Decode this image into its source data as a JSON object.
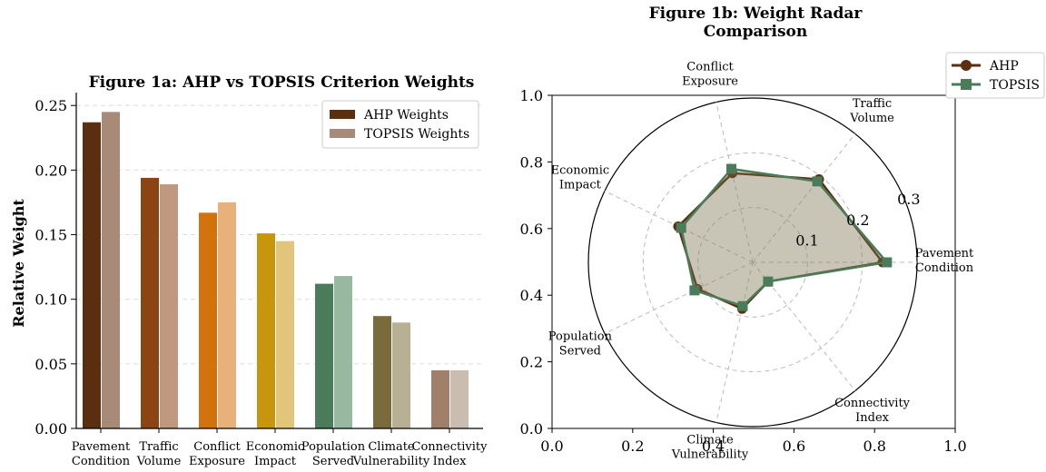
{
  "chart_data": [
    {
      "type": "bar",
      "title": "Figure 1a: AHP vs TOPSIS Criterion Weights",
      "ylabel": "Relative Weight",
      "xlabel": "",
      "ylim": [
        0,
        0.26
      ],
      "yticks": [
        "0.00",
        "0.05",
        "0.10",
        "0.15",
        "0.20",
        "0.25"
      ],
      "categories": [
        [
          "Pavement",
          "Condition"
        ],
        [
          "Traffic",
          "Volume"
        ],
        [
          "Conflict",
          "Exposure"
        ],
        [
          "Economic",
          "Impact"
        ],
        [
          "Population",
          "Served"
        ],
        [
          "Climate",
          "Vulnerability"
        ],
        [
          "Connectivity",
          "Index"
        ]
      ],
      "series": [
        {
          "name": "AHP Weights",
          "values": [
            0.237,
            0.194,
            0.167,
            0.151,
            0.112,
            0.087,
            0.045
          ]
        },
        {
          "name": "TOPSIS Weights",
          "values": [
            0.245,
            0.189,
            0.175,
            0.145,
            0.118,
            0.082,
            0.045
          ]
        }
      ],
      "bar_colors": {
        "ahp": [
          "#5c2e10",
          "#8b4513",
          "#d2720c",
          "#c8960c",
          "#4a7c59",
          "#7a6b3a",
          "#a08068"
        ],
        "topsis": [
          "#a88a78",
          "#c09880",
          "#e8b07a",
          "#e0c57a",
          "#98b8a0",
          "#b8b094",
          "#cbbcb0"
        ]
      },
      "legend_colors": [
        "#5c2e10",
        "#a88a78"
      ],
      "legend": "top-right",
      "grid": "y dashed"
    },
    {
      "type": "radar",
      "title": [
        "Figure 1b: Weight Radar",
        "Comparison"
      ],
      "axes": [
        [
          "Pavement",
          "Condition"
        ],
        [
          "Traffic",
          "Volume"
        ],
        [
          "Conflict",
          "Exposure"
        ],
        [
          "Economic",
          "Impact"
        ],
        [
          "Population",
          "Served"
        ],
        [
          "Climate",
          "Vulnerability"
        ],
        [
          "Connectivity",
          "Index"
        ]
      ],
      "rmax": 0.3,
      "radial_ticks": [
        "0.1",
        "0.2",
        "0.3"
      ],
      "series": [
        {
          "name": "AHP",
          "values": [
            0.237,
            0.194,
            0.167,
            0.151,
            0.112,
            0.087,
            0.045
          ],
          "color": "#5c2e10",
          "marker": "circle"
        },
        {
          "name": "TOPSIS",
          "values": [
            0.245,
            0.189,
            0.175,
            0.145,
            0.118,
            0.082,
            0.045
          ],
          "color": "#4a7c59",
          "marker": "square"
        }
      ],
      "fill_color": "#8b8468",
      "frame_ticks": [
        "0.0",
        "0.2",
        "0.4",
        "0.6",
        "0.8",
        "1.0"
      ],
      "legend": "upper-right"
    }
  ]
}
